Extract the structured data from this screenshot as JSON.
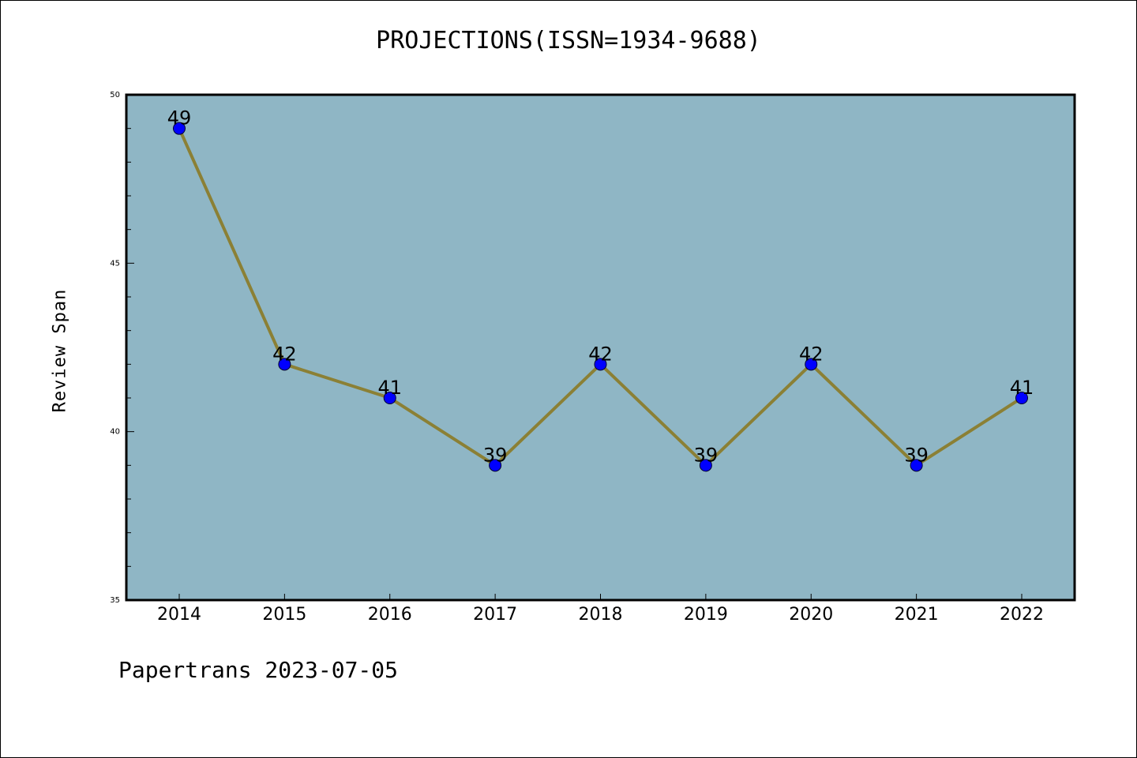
{
  "chart_data": {
    "type": "line",
    "title": "PROJECTIONS(ISSN=1934-9688)",
    "xlabel": "",
    "ylabel": "Review Span",
    "categories": [
      "2014",
      "2015",
      "2016",
      "2017",
      "2018",
      "2019",
      "2020",
      "2021",
      "2022"
    ],
    "series": [
      {
        "values": [
          49,
          42,
          41,
          39,
          42,
          39,
          42,
          39,
          41
        ]
      }
    ],
    "ylim": [
      35,
      50
    ],
    "yticks": [
      35,
      40,
      45,
      50
    ],
    "grid": false,
    "legend": "none",
    "colors": {
      "plot_background": "#8fb6c5",
      "line": "#8b8035",
      "marker": "#0000ff"
    }
  },
  "footer": {
    "text": "Papertrans 2023-07-05"
  }
}
